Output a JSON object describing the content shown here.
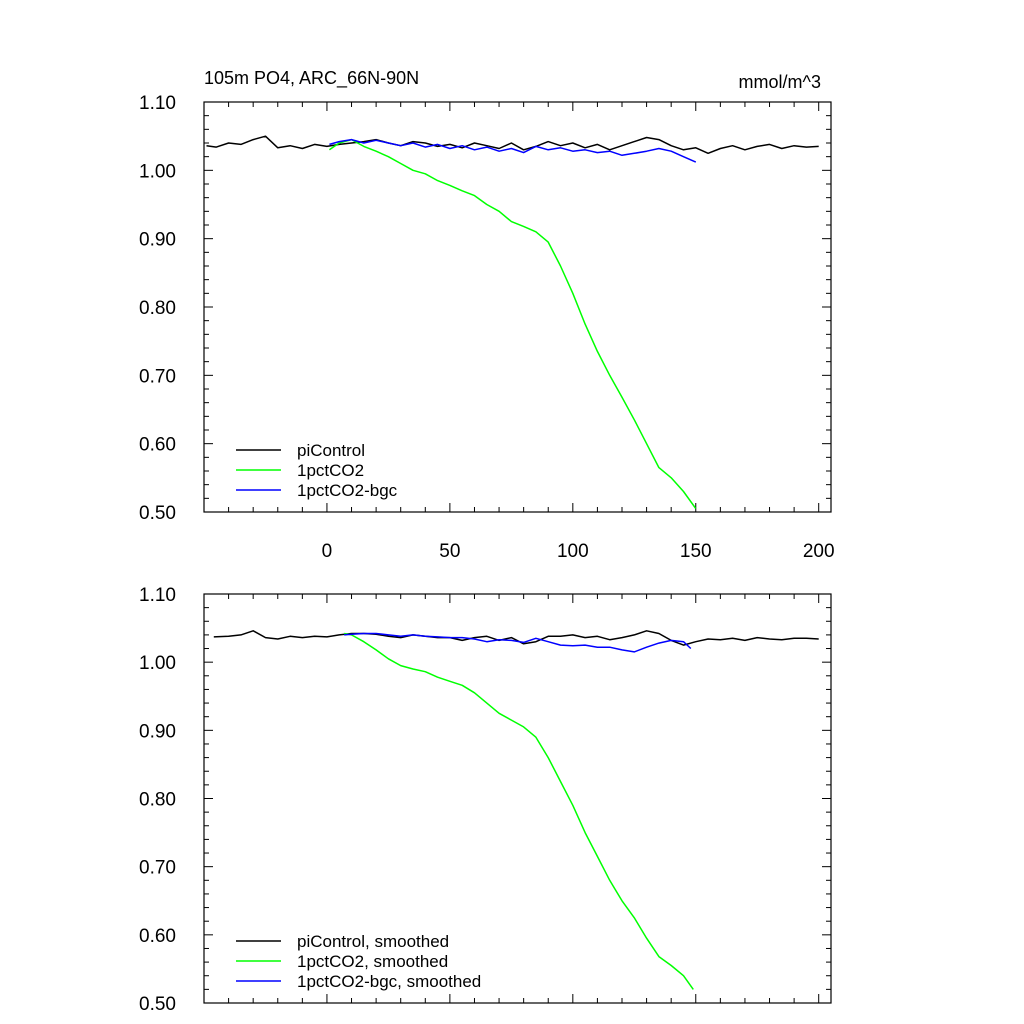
{
  "chart_data": [
    {
      "type": "line",
      "title": "105m PO4, ARC_66N-90N",
      "units": "mmol/m^3",
      "xlim": [
        -50,
        205
      ],
      "ylim": [
        0.5,
        1.1
      ],
      "x_ticks": [
        0,
        50,
        100,
        150,
        200
      ],
      "y_ticks": [
        0.5,
        0.6,
        0.7,
        0.8,
        0.9,
        1.0,
        1.1
      ],
      "y_tick_labels": [
        "0.50",
        "0.60",
        "0.70",
        "0.80",
        "0.90",
        "1.00",
        "1.10"
      ],
      "grid": false,
      "legend_position": "bottom-left",
      "series": [
        {
          "name": "piControl",
          "color": "#000000",
          "x": [
            -49,
            -45,
            -40,
            -35,
            -30,
            -25,
            -20,
            -15,
            -10,
            -5,
            0,
            5,
            10,
            15,
            20,
            25,
            30,
            35,
            40,
            45,
            50,
            55,
            60,
            65,
            70,
            75,
            80,
            85,
            90,
            95,
            100,
            105,
            110,
            115,
            120,
            125,
            130,
            135,
            140,
            145,
            150,
            155,
            160,
            165,
            170,
            175,
            180,
            185,
            190,
            195,
            200
          ],
          "y": [
            1.036,
            1.034,
            1.04,
            1.038,
            1.045,
            1.05,
            1.033,
            1.036,
            1.032,
            1.038,
            1.035,
            1.038,
            1.04,
            1.042,
            1.045,
            1.04,
            1.036,
            1.042,
            1.04,
            1.035,
            1.038,
            1.033,
            1.04,
            1.036,
            1.032,
            1.04,
            1.03,
            1.035,
            1.042,
            1.036,
            1.04,
            1.033,
            1.038,
            1.03,
            1.036,
            1.042,
            1.048,
            1.045,
            1.036,
            1.03,
            1.033,
            1.025,
            1.032,
            1.036,
            1.03,
            1.035,
            1.038,
            1.032,
            1.036,
            1.034,
            1.035
          ]
        },
        {
          "name": "1pctCO2",
          "color": "#00ff00",
          "x": [
            1,
            5,
            10,
            15,
            20,
            25,
            30,
            35,
            40,
            45,
            50,
            55,
            60,
            65,
            70,
            75,
            80,
            85,
            90,
            95,
            100,
            105,
            110,
            115,
            120,
            125,
            130,
            135,
            140,
            145,
            150
          ],
          "y": [
            1.03,
            1.04,
            1.045,
            1.035,
            1.028,
            1.02,
            1.01,
            1.0,
            0.995,
            0.985,
            0.978,
            0.97,
            0.963,
            0.95,
            0.94,
            0.925,
            0.918,
            0.91,
            0.895,
            0.86,
            0.82,
            0.775,
            0.735,
            0.7,
            0.668,
            0.635,
            0.6,
            0.565,
            0.55,
            0.53,
            0.505
          ]
        },
        {
          "name": "1pctCO2-bgc",
          "color": "#0000ff",
          "x": [
            1,
            5,
            10,
            15,
            20,
            25,
            30,
            35,
            40,
            45,
            50,
            55,
            60,
            65,
            70,
            75,
            80,
            85,
            90,
            95,
            100,
            105,
            110,
            115,
            120,
            125,
            130,
            135,
            140,
            145,
            150
          ],
          "y": [
            1.038,
            1.042,
            1.045,
            1.04,
            1.044,
            1.04,
            1.036,
            1.04,
            1.034,
            1.038,
            1.032,
            1.036,
            1.03,
            1.034,
            1.028,
            1.032,
            1.026,
            1.035,
            1.03,
            1.033,
            1.028,
            1.03,
            1.026,
            1.028,
            1.022,
            1.025,
            1.028,
            1.032,
            1.028,
            1.02,
            1.012
          ]
        }
      ]
    },
    {
      "type": "line",
      "title": "",
      "xlim": [
        -50,
        205
      ],
      "ylim": [
        0.5,
        1.1
      ],
      "x_ticks": [
        0,
        50,
        100,
        150,
        200
      ],
      "y_ticks": [
        0.5,
        0.6,
        0.7,
        0.8,
        0.9,
        1.0,
        1.1
      ],
      "y_tick_labels": [
        "0.50",
        "0.60",
        "0.70",
        "0.80",
        "0.90",
        "1.00",
        "1.10"
      ],
      "grid": false,
      "legend_position": "bottom-left",
      "series": [
        {
          "name": "piControl, smoothed",
          "color": "#000000",
          "x": [
            -46,
            -40,
            -35,
            -30,
            -25,
            -20,
            -15,
            -10,
            -5,
            0,
            5,
            10,
            15,
            20,
            25,
            30,
            35,
            40,
            45,
            50,
            55,
            60,
            65,
            70,
            75,
            80,
            85,
            90,
            95,
            100,
            105,
            110,
            115,
            120,
            125,
            130,
            135,
            140,
            145,
            150,
            155,
            160,
            165,
            170,
            175,
            180,
            185,
            190,
            195,
            200
          ],
          "y": [
            1.037,
            1.038,
            1.04,
            1.046,
            1.036,
            1.034,
            1.038,
            1.036,
            1.038,
            1.037,
            1.04,
            1.042,
            1.042,
            1.041,
            1.038,
            1.036,
            1.04,
            1.038,
            1.036,
            1.036,
            1.032,
            1.036,
            1.038,
            1.032,
            1.036,
            1.027,
            1.03,
            1.038,
            1.038,
            1.04,
            1.036,
            1.038,
            1.033,
            1.036,
            1.04,
            1.046,
            1.042,
            1.032,
            1.025,
            1.03,
            1.034,
            1.033,
            1.035,
            1.032,
            1.036,
            1.034,
            1.033,
            1.035,
            1.035,
            1.034
          ]
        },
        {
          "name": "1pctCO2, smoothed",
          "color": "#00ff00",
          "x": [
            7,
            10,
            15,
            20,
            25,
            30,
            35,
            40,
            45,
            50,
            55,
            60,
            65,
            70,
            75,
            80,
            85,
            90,
            95,
            100,
            105,
            110,
            115,
            120,
            125,
            130,
            135,
            140,
            145,
            149
          ],
          "y": [
            1.042,
            1.04,
            1.03,
            1.018,
            1.005,
            0.995,
            0.99,
            0.986,
            0.978,
            0.972,
            0.966,
            0.955,
            0.94,
            0.925,
            0.915,
            0.905,
            0.89,
            0.86,
            0.825,
            0.79,
            0.75,
            0.715,
            0.68,
            0.65,
            0.625,
            0.595,
            0.568,
            0.555,
            0.54,
            0.52
          ]
        },
        {
          "name": "1pctCO2-bgc, smoothed",
          "color": "#0000ff",
          "x": [
            7,
            10,
            15,
            20,
            25,
            30,
            35,
            40,
            45,
            50,
            55,
            60,
            65,
            70,
            75,
            80,
            85,
            90,
            95,
            100,
            105,
            110,
            115,
            120,
            125,
            130,
            135,
            140,
            145,
            148
          ],
          "y": [
            1.04,
            1.041,
            1.042,
            1.042,
            1.04,
            1.038,
            1.04,
            1.038,
            1.037,
            1.036,
            1.036,
            1.034,
            1.03,
            1.033,
            1.032,
            1.029,
            1.035,
            1.03,
            1.025,
            1.024,
            1.025,
            1.022,
            1.022,
            1.018,
            1.015,
            1.022,
            1.028,
            1.032,
            1.03,
            1.02
          ]
        }
      ]
    }
  ]
}
